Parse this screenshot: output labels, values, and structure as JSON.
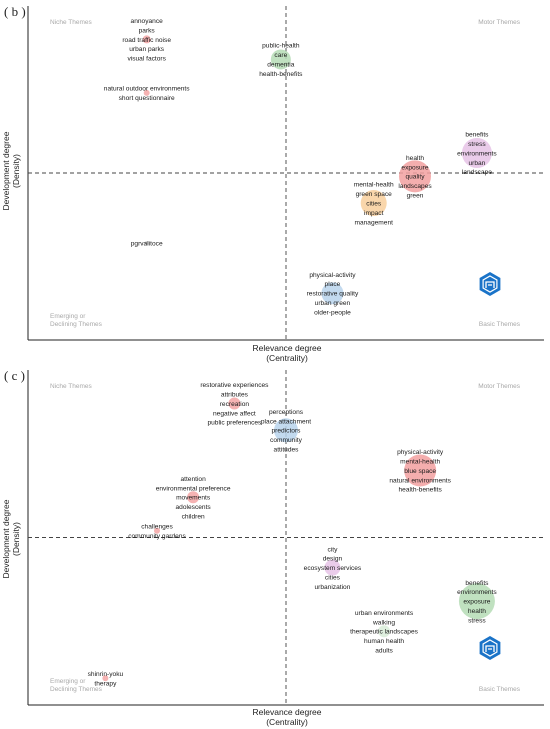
{
  "chart_data": [
    {
      "type": "scatter",
      "panel_label": "( b )",
      "xlabel": "Relevance degree\n(Centrality)",
      "ylabel": "Development degree\n(Density)",
      "quadrants": {
        "top_left": "Niche Themes",
        "top_right": "Motor Themes",
        "bottom_left": "Emerging or\nDeclining Themes",
        "bottom_right": "Basic Themes"
      },
      "xlim": [
        0,
        100
      ],
      "ylim": [
        0,
        100
      ],
      "x_mid": 50,
      "y_mid": 50,
      "clusters": [
        {
          "x": 23,
          "y": 90,
          "size": 4,
          "color": "#f4a6a6",
          "labels": [
            "annoyance",
            "parks",
            "road traffic noise",
            "urban parks",
            "visual factors"
          ]
        },
        {
          "x": 49,
          "y": 84,
          "size": 10,
          "color": "#b5dcb5",
          "labels": [
            "public-health",
            "care",
            "dementia",
            "health-benefits"
          ]
        },
        {
          "x": 23,
          "y": 74,
          "size": 3,
          "color": "#f4a6a6",
          "labels": [
            "natural outdoor environments",
            "short questionnaire"
          ]
        },
        {
          "x": 87,
          "y": 56,
          "size": 15,
          "color": "#e6c3e6",
          "labels": [
            "benefits",
            "stress",
            "environments",
            "urban",
            "landscape"
          ]
        },
        {
          "x": 75,
          "y": 49,
          "size": 16,
          "color": "#f2a0a0",
          "labels": [
            "health",
            "exposure",
            "quality",
            "landscapes",
            "green"
          ]
        },
        {
          "x": 67,
          "y": 41,
          "size": 13,
          "color": "#f8cf9c",
          "labels": [
            "mental-health",
            "green space",
            "cities",
            "impact",
            "management"
          ]
        },
        {
          "x": 23,
          "y": 29,
          "size": 2,
          "color": "#cccccc",
          "labels": [
            "pgrvalitoce"
          ]
        },
        {
          "x": 59,
          "y": 14,
          "size": 11,
          "color": "#b9d3ec",
          "labels": [
            "physical-activity",
            "place",
            "restorative quality",
            "urban green",
            "older-people"
          ]
        }
      ]
    },
    {
      "type": "scatter",
      "panel_label": "( c )",
      "xlabel": "Relevance degree\n(Centrality)",
      "ylabel": "Development degree\n(Density)",
      "quadrants": {
        "top_left": "Niche Themes",
        "top_right": "Motor Themes",
        "bottom_left": "Emerging or\nDeclining Themes",
        "bottom_right": "Basic Themes"
      },
      "xlim": [
        0,
        100
      ],
      "ylim": [
        0,
        100
      ],
      "x_mid": 50,
      "y_mid": 50,
      "clusters": [
        {
          "x": 40,
          "y": 90,
          "size": 6,
          "color": "#f4a6a6",
          "labels": [
            "restorative experiences",
            "attributes",
            "recreation",
            "negative affect",
            "public preferences"
          ]
        },
        {
          "x": 50,
          "y": 82,
          "size": 12,
          "color": "#b9d3ec",
          "labels": [
            "perceptions",
            "place attachment",
            "predictors",
            "community",
            "attitudes"
          ]
        },
        {
          "x": 76,
          "y": 70,
          "size": 16,
          "color": "#f2a0a0",
          "labels": [
            "physical-activity",
            "mental-health",
            "blue space",
            "natural environments",
            "health-benefits"
          ]
        },
        {
          "x": 32,
          "y": 62,
          "size": 6,
          "color": "#f4a6a6",
          "labels": [
            "attention",
            "environmental preference",
            "movements",
            "adolescents",
            "children"
          ]
        },
        {
          "x": 25,
          "y": 52,
          "size": 3,
          "color": "#f4a6a6",
          "labels": [
            "challenges",
            "community gardens"
          ]
        },
        {
          "x": 59,
          "y": 41,
          "size": 8,
          "color": "#e6c3e6",
          "labels": [
            "city",
            "design",
            "ecosystem services",
            "cities",
            "urbanization"
          ]
        },
        {
          "x": 87,
          "y": 31,
          "size": 18,
          "color": "#b5dcb5",
          "labels": [
            "benefits",
            "environments",
            "exposure",
            "health",
            "stress"
          ]
        },
        {
          "x": 69,
          "y": 22,
          "size": 6,
          "color": "#d8ecd8",
          "labels": [
            "urban environments",
            "walking",
            "therapeutic landscapes",
            "human health",
            "adults"
          ]
        },
        {
          "x": 15,
          "y": 8,
          "size": 3,
          "color": "#f4a6a6",
          "labels": [
            "shinrin-yoku",
            "therapy"
          ]
        }
      ]
    }
  ],
  "watermark": {
    "icon": "mdpi-badge-icon",
    "color": "#1a73c8"
  }
}
